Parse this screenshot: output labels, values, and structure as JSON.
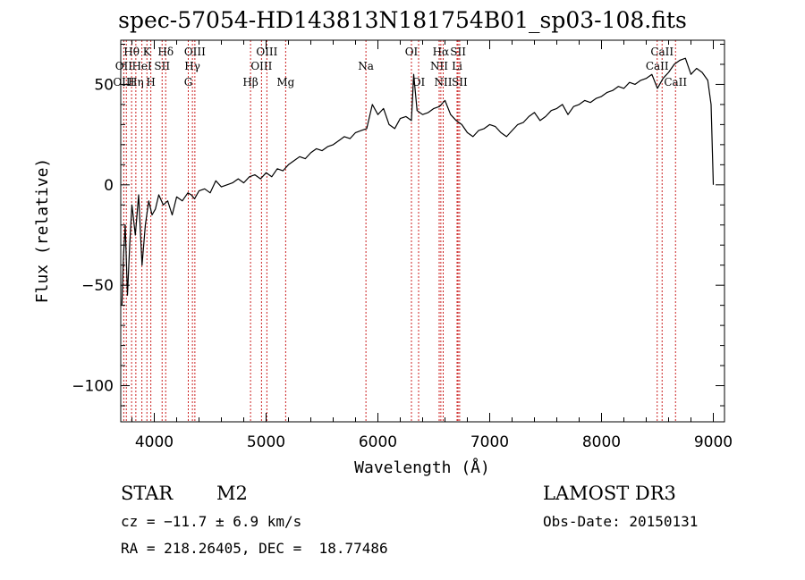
{
  "chart_data": {
    "type": "line",
    "title": "spec-57054-HD143813N181754B01_sp03-108.fits",
    "xlabel": "Wavelength (Å)",
    "ylabel": "Flux (relative)",
    "xlim": [
      3700,
      9100
    ],
    "ylim": [
      -118,
      72
    ],
    "xticks": [
      {
        "value": 4000,
        "label": "4000"
      },
      {
        "value": 5000,
        "label": "5000"
      },
      {
        "value": 6000,
        "label": "6000"
      },
      {
        "value": 7000,
        "label": "7000"
      },
      {
        "value": 8000,
        "label": "8000"
      },
      {
        "value": 9000,
        "label": "9000"
      }
    ],
    "yticks": [
      {
        "value": -100,
        "label": "−100"
      },
      {
        "value": -50,
        "label": "−50"
      },
      {
        "value": 0,
        "label": "0"
      },
      {
        "value": 50,
        "label": "50"
      }
    ],
    "line_labels": [
      {
        "text": "Hθ",
        "x": 3797,
        "row": 0
      },
      {
        "text": "K",
        "x": 3934,
        "row": 0
      },
      {
        "text": "Hδ",
        "x": 4102,
        "row": 0
      },
      {
        "text": "OIII",
        "x": 4363,
        "row": 0
      },
      {
        "text": "OIII",
        "x": 5007,
        "row": 0
      },
      {
        "text": "OI",
        "x": 6300,
        "row": 0
      },
      {
        "text": "Hα",
        "x": 6563,
        "row": 0
      },
      {
        "text": "SII",
        "x": 6717,
        "row": 0
      },
      {
        "text": "CaII",
        "x": 8542,
        "row": 0
      },
      {
        "text": "OII",
        "x": 3727,
        "row": 1
      },
      {
        "text": "HeI",
        "x": 3889,
        "row": 1
      },
      {
        "text": "SII",
        "x": 4070,
        "row": 1
      },
      {
        "text": "Hγ",
        "x": 4341,
        "row": 1
      },
      {
        "text": "OIII",
        "x": 4959,
        "row": 1
      },
      {
        "text": "Na",
        "x": 5893,
        "row": 1
      },
      {
        "text": "NII",
        "x": 6548,
        "row": 1
      },
      {
        "text": "Li",
        "x": 6708,
        "row": 1
      },
      {
        "text": "CaII",
        "x": 8498,
        "row": 1
      },
      {
        "text": "OIII",
        "x": 3727,
        "row": 2
      },
      {
        "text": "Hη",
        "x": 3835,
        "row": 2
      },
      {
        "text": "H",
        "x": 3969,
        "row": 2
      },
      {
        "text": "G",
        "x": 4304,
        "row": 2
      },
      {
        "text": "Hβ",
        "x": 4861,
        "row": 2
      },
      {
        "text": "Mg",
        "x": 5175,
        "row": 2
      },
      {
        "text": "OI",
        "x": 6364,
        "row": 2
      },
      {
        "text": "NII",
        "x": 6584,
        "row": 2
      },
      {
        "text": "SII",
        "x": 6731,
        "row": 2
      },
      {
        "text": "CaII",
        "x": 8662,
        "row": 2
      }
    ],
    "lines": [
      3727,
      3750,
      3797,
      3835,
      3889,
      3934,
      3969,
      4070,
      4102,
      4304,
      4341,
      4363,
      4861,
      4959,
      5007,
      5175,
      5893,
      6300,
      6364,
      6548,
      6563,
      6584,
      6708,
      6717,
      6731,
      8498,
      8542,
      8662
    ],
    "series": [
      {
        "x": [
          3710,
          3725,
          3740,
          3760,
          3780,
          3800,
          3830,
          3860,
          3890,
          3920,
          3950,
          3980,
          4010,
          4040,
          4080,
          4120,
          4160,
          4200,
          4250,
          4300,
          4330,
          4360,
          4400,
          4450,
          4500,
          4550,
          4600,
          4650,
          4700,
          4750,
          4800,
          4850,
          4900,
          4950,
          5000,
          5050,
          5100,
          5150,
          5200,
          5250,
          5300,
          5350,
          5400,
          5450,
          5500,
          5550,
          5600,
          5650,
          5700,
          5750,
          5800,
          5850,
          5900,
          5950,
          6000,
          6050,
          6100,
          6150,
          6200,
          6250,
          6300,
          6320,
          6350,
          6400,
          6450,
          6500,
          6550,
          6600,
          6650,
          6700,
          6750,
          6800,
          6850,
          6900,
          6950,
          7000,
          7050,
          7100,
          7150,
          7200,
          7250,
          7300,
          7350,
          7400,
          7450,
          7500,
          7550,
          7600,
          7650,
          7700,
          7750,
          7800,
          7850,
          7900,
          7950,
          8000,
          8050,
          8100,
          8150,
          8200,
          8250,
          8300,
          8350,
          8400,
          8450,
          8500,
          8550,
          8600,
          8650,
          8700,
          8750,
          8800,
          8850,
          8900,
          8950,
          8980,
          9000
        ],
        "y": [
          -60,
          -35,
          -20,
          -55,
          -30,
          -10,
          -25,
          -5,
          -40,
          -20,
          -8,
          -15,
          -12,
          -5,
          -10,
          -8,
          -15,
          -6,
          -8,
          -4,
          -5,
          -7,
          -3,
          -2,
          -4,
          2,
          -1,
          0,
          1,
          3,
          1,
          4,
          5,
          3,
          6,
          4,
          8,
          7,
          10,
          12,
          14,
          13,
          16,
          18,
          17,
          19,
          20,
          22,
          24,
          23,
          26,
          27,
          28,
          40,
          35,
          38,
          30,
          28,
          33,
          34,
          32,
          55,
          37,
          35,
          36,
          38,
          39,
          42,
          35,
          32,
          30,
          26,
          24,
          27,
          28,
          30,
          29,
          26,
          24,
          27,
          30,
          31,
          34,
          36,
          32,
          34,
          37,
          38,
          40,
          35,
          39,
          40,
          42,
          41,
          43,
          44,
          46,
          47,
          49,
          48,
          51,
          50,
          52,
          53,
          55,
          48,
          53,
          56,
          60,
          62,
          63,
          55,
          58,
          56,
          52,
          40,
          0
        ]
      }
    ]
  },
  "info": {
    "class": "STAR",
    "subclass": "M2",
    "survey": "LAMOST DR3",
    "cz": "cz = −11.7 ± 6.9 km/s",
    "obs_date": "Obs-Date: 20150131",
    "radec": "RA = 218.26405, DEC =  18.77486"
  }
}
